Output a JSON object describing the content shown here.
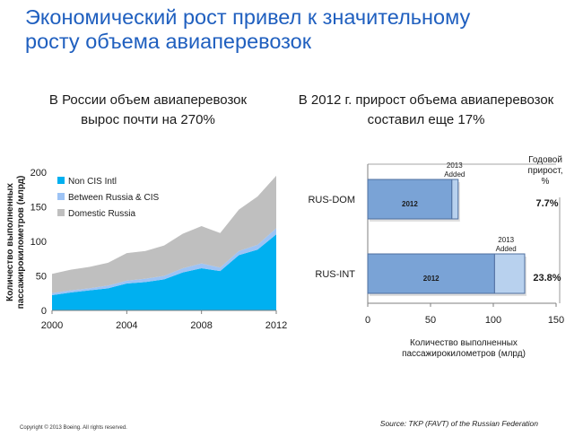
{
  "slide": {
    "title_lines": [
      "Экономический рост привел к значительному",
      "росту объема авиаперевозок"
    ],
    "left_subtitle_lines": [
      "В России объем авиаперевозок",
      "вырос почти на 270%"
    ],
    "right_subtitle_lines": [
      "В 2012 г. прирост объема авиаперевозок",
      "составил еще 17%"
    ],
    "copyright": "Copyright © 2013 Boeing. All rights reserved.",
    "source": "Source: TKP (FAVT) of the Russian Federation"
  },
  "colors": {
    "title": "#1f5fbf",
    "non_cis": "#00b0f0",
    "between": "#9dc3f5",
    "domestic": "#bfbfbf",
    "bar_fill": "#7aa3d6",
    "bar_added": "#b8d1ee",
    "bar_border": "#4f6f9f"
  },
  "chart_data": [
    {
      "type": "area",
      "stacked": true,
      "x": [
        2000,
        2001,
        2002,
        2003,
        2004,
        2005,
        2006,
        2007,
        2008,
        2009,
        2010,
        2011,
        2012
      ],
      "series": [
        {
          "name": "Non CIS Intl",
          "values": [
            22,
            26,
            29,
            32,
            39,
            41,
            45,
            55,
            61,
            57,
            80,
            88,
            110
          ]
        },
        {
          "name": "Between Russia & CIS",
          "values": [
            3,
            3,
            3,
            4,
            4,
            5,
            5,
            6,
            7,
            5,
            6,
            7,
            9
          ]
        },
        {
          "name": "Domestic Russia",
          "values": [
            28,
            30,
            31,
            33,
            40,
            40,
            44,
            50,
            54,
            50,
            60,
            70,
            76
          ]
        }
      ],
      "ylabel": "Количество выполненных пассажирокилометров (млрд)",
      "xticks": [
        "2000",
        "2004",
        "2008",
        "2012"
      ],
      "yticks": [
        "0",
        "50",
        "100",
        "150",
        "200"
      ],
      "ylim": [
        0,
        200
      ],
      "xlim": [
        2000,
        2012
      ],
      "legend": "top-left",
      "grid": false
    },
    {
      "type": "bar",
      "orientation": "horizontal",
      "stacked": true,
      "categories": [
        "RUS-DOM",
        "RUS-INT"
      ],
      "series": [
        {
          "name": "2012",
          "values": [
            67,
            101
          ]
        },
        {
          "name": "2013 Added",
          "values": [
            5,
            24
          ]
        }
      ],
      "segment_labels": {
        "base": "2012",
        "added": [
          "2013",
          "Added"
        ]
      },
      "growth_header": [
        "Годовой",
        "прирост,",
        "%"
      ],
      "growth_values": [
        "7.7%",
        "23.8%"
      ],
      "xlabel": "Количество выполненных пассажирокилометров (млрд)",
      "xticks": [
        "0",
        "50",
        "100",
        "150"
      ],
      "xlim": [
        0,
        150
      ],
      "grid": false
    }
  ]
}
